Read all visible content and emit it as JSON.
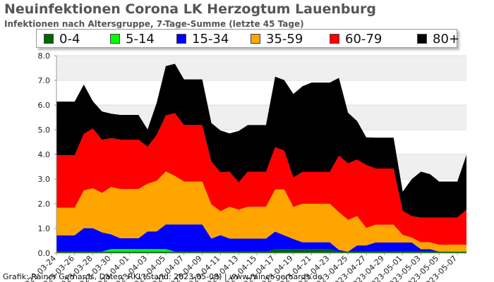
{
  "title": "Neuinfektionen Corona LK Herzogtum Lauenburg",
  "subtitle": "Infektionen nach Altersgruppe, 7-Tage-Summe (letzte 45 Tage)",
  "footer": "Grafik: Rainer Gerhards, Daten: RKI (Stand: 2023-05-08) | www.rainer-gerhards.de",
  "chart_data": {
    "type": "area",
    "stacked": true,
    "grid": true,
    "legend_position": "top",
    "ylim": [
      0,
      8
    ],
    "y_ticks": [
      "0.0",
      "1.0",
      "2.0",
      "3.0",
      "4.0",
      "5.0",
      "6.0",
      "7.0",
      "8.0"
    ],
    "x": [
      "2023-03-24",
      "2023-03-25",
      "2023-03-26",
      "2023-03-27",
      "2023-03-28",
      "2023-03-29",
      "2023-03-30",
      "2023-03-31",
      "2023-04-01",
      "2023-04-02",
      "2023-04-03",
      "2023-04-04",
      "2023-04-05",
      "2023-04-06",
      "2023-04-07",
      "2023-04-08",
      "2023-04-09",
      "2023-04-10",
      "2023-04-11",
      "2023-04-12",
      "2023-04-13",
      "2023-04-14",
      "2023-04-15",
      "2023-04-16",
      "2023-04-17",
      "2023-04-18",
      "2023-04-19",
      "2023-04-20",
      "2023-04-21",
      "2023-04-22",
      "2023-04-23",
      "2023-04-24",
      "2023-04-25",
      "2023-04-26",
      "2023-04-27",
      "2023-04-28",
      "2023-04-29",
      "2023-04-30",
      "2023-05-01",
      "2023-05-02",
      "2023-05-03",
      "2023-05-04",
      "2023-05-05",
      "2023-05-06",
      "2023-05-07",
      "2023-05-08"
    ],
    "x_ticks": [
      "2023-03-24",
      "2023-03-26",
      "2023-03-28",
      "2023-03-30",
      "2023-04-01",
      "2023-04-03",
      "2023-04-05",
      "2023-04-07",
      "2023-04-09",
      "2023-04-11",
      "2023-04-13",
      "2023-04-15",
      "2023-04-17",
      "2023-04-19",
      "2023-04-21",
      "2023-04-23",
      "2023-04-25",
      "2023-04-27",
      "2023-04-29",
      "2023-05-01",
      "2023-05-03",
      "2023-05-05",
      "2023-05-07"
    ],
    "series": [
      {
        "name": "0-4",
        "color": "#006400",
        "values": [
          0.06,
          0.06,
          0.06,
          0.06,
          0.06,
          0.06,
          0.06,
          0.06,
          0.06,
          0.06,
          0.06,
          0.06,
          0.06,
          0.06,
          0.06,
          0.06,
          0.06,
          0.06,
          0.06,
          0.06,
          0.06,
          0.06,
          0.06,
          0.06,
          0.15,
          0.15,
          0.15,
          0.15,
          0.15,
          0.15,
          0.15,
          0.06,
          0.06,
          0.06,
          0.06,
          0.06,
          0.06,
          0.06,
          0.06,
          0.06,
          0.06,
          0.06,
          0.06,
          0.06,
          0.06,
          0.06
        ]
      },
      {
        "name": "5-14",
        "color": "#00ff00",
        "values": [
          0,
          0,
          0,
          0,
          0,
          0,
          0.1,
          0.1,
          0.1,
          0.1,
          0.1,
          0.1,
          0.1,
          0,
          0,
          0,
          0,
          0,
          0,
          0,
          0,
          0,
          0,
          0,
          0,
          0,
          0,
          0,
          0,
          0,
          0,
          0,
          0,
          0,
          0,
          0,
          0,
          0,
          0,
          0,
          0,
          0,
          0,
          0,
          0,
          0
        ]
      },
      {
        "name": "15-34",
        "color": "#0000ff",
        "values": [
          0.66,
          0.66,
          0.66,
          0.95,
          0.95,
          0.78,
          0.6,
          0.44,
          0.44,
          0.44,
          0.72,
          0.72,
          1.0,
          1.1,
          1.1,
          1.1,
          1.1,
          0.53,
          0.67,
          0.53,
          0.53,
          0.53,
          0.53,
          0.53,
          0.72,
          0.57,
          0.42,
          0.29,
          0.29,
          0.29,
          0.29,
          0.07,
          0,
          0.25,
          0.25,
          0.37,
          0.37,
          0.37,
          0.37,
          0.37,
          0.1,
          0.1,
          0,
          0,
          0,
          0
        ]
      },
      {
        "name": "35-59",
        "color": "#ffa500",
        "values": [
          1.12,
          1.12,
          1.12,
          1.53,
          1.62,
          1.6,
          1.92,
          2.0,
          2.0,
          2.0,
          1.93,
          2.05,
          2.15,
          1.97,
          1.74,
          1.74,
          1.74,
          1.38,
          0.97,
          1.29,
          1.17,
          1.29,
          1.29,
          1.29,
          1.71,
          1.86,
          1.3,
          1.56,
          1.56,
          1.56,
          1.56,
          1.53,
          1.29,
          1.19,
          0.71,
          0.72,
          0.72,
          0.72,
          0.31,
          0.2,
          0.28,
          0.28,
          0.28,
          0.28,
          0.28,
          0.28
        ]
      },
      {
        "name": "60-79",
        "color": "#ff0000",
        "values": [
          2.13,
          2.13,
          2.13,
          2.29,
          2.42,
          2.15,
          1.98,
          2.0,
          2.0,
          2.0,
          1.5,
          1.86,
          2.27,
          2.54,
          2.29,
          2.29,
          2.29,
          1.74,
          1.57,
          1.42,
          1.11,
          1.42,
          1.42,
          1.42,
          1.71,
          1.57,
          1.19,
          1.29,
          1.29,
          1.29,
          1.29,
          2.29,
          2.29,
          2.29,
          2.55,
          2.28,
          2.28,
          2.28,
          0.97,
          0.87,
          1.0,
          1.0,
          1.1,
          1.1,
          1.1,
          1.42
        ]
      },
      {
        "name": "80+",
        "color": "#000000",
        "values": [
          2.17,
          2.17,
          2.17,
          2.0,
          1.1,
          1.15,
          0.99,
          1.0,
          1.0,
          1.0,
          0.7,
          1.3,
          2.0,
          2.0,
          1.85,
          1.85,
          1.85,
          1.56,
          1.7,
          1.55,
          2.08,
          1.89,
          1.89,
          1.89,
          2.86,
          2.86,
          3.39,
          3.47,
          3.62,
          3.62,
          3.62,
          3.15,
          2.05,
          1.56,
          1.12,
          1.25,
          1.25,
          1.25,
          0.78,
          1.5,
          1.86,
          1.76,
          1.46,
          1.46,
          1.46,
          2.22
        ]
      }
    ]
  }
}
